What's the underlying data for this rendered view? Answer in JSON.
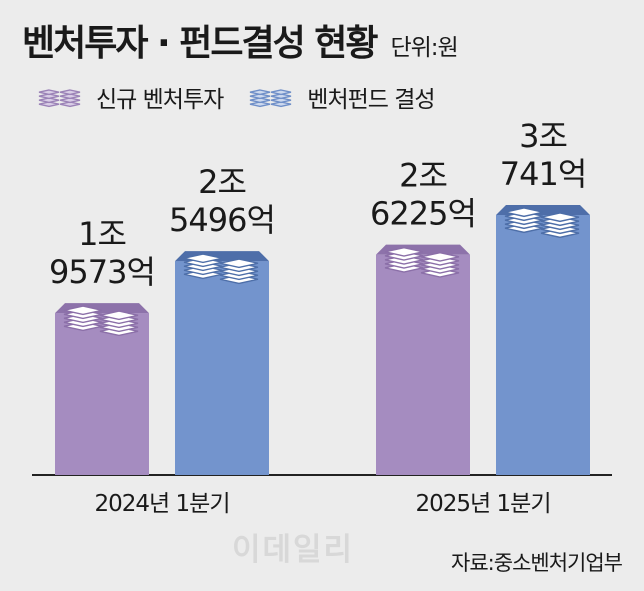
{
  "header": {
    "title": "벤처투자 · 펀드결성 현황",
    "unit": "단위:원"
  },
  "legend": [
    {
      "label": "신규 벤처투자",
      "color": "#9b82b7"
    },
    {
      "label": "벤처펀드 결성",
      "color": "#6f8fc8"
    }
  ],
  "colors": {
    "purple_side": "#a58cc0",
    "purple_top": "#8d72aa",
    "blue_side": "#7394cd",
    "blue_top": "#4e6ea9",
    "stack_fill": "#ffffff"
  },
  "chart_data": {
    "type": "bar",
    "categories": [
      "2024년 1분기",
      "2025년 1분기"
    ],
    "series": [
      {
        "name": "신규 벤처투자",
        "values": [
          19573,
          26225
        ],
        "labels": [
          [
            "1조",
            "9573억"
          ],
          [
            "2조",
            "6225억"
          ]
        ]
      },
      {
        "name": "벤처펀드 결성",
        "values": [
          25496,
          30741
        ],
        "labels": [
          [
            "2조",
            "5496억"
          ],
          [
            "3조",
            "741억"
          ]
        ]
      }
    ],
    "unit": "억원",
    "ylim": [
      0,
      30741
    ]
  },
  "footer": {
    "source": "자료:중소벤처기업부",
    "watermark": "이데일리"
  }
}
